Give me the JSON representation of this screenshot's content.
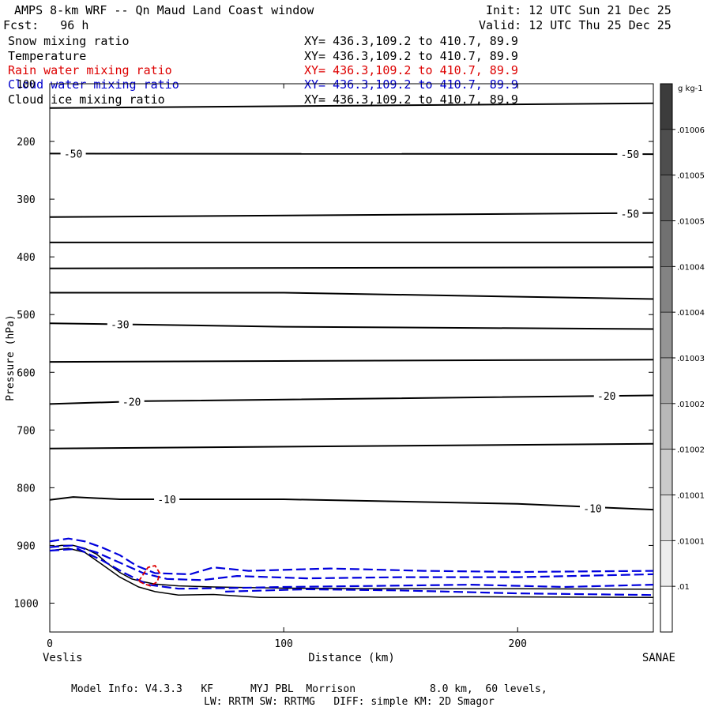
{
  "header": {
    "title": "AMPS 8-km WRF -- Qn Maud Land Coast window",
    "init": "Init: 12 UTC Sun 21 Dec 25",
    "fcst": "Fcst:   96 h",
    "valid": "Valid: 12 UTC Thu 25 Dec 25"
  },
  "legend": [
    {
      "name": "Snow mixing ratio",
      "xy": "XY= 436.3,109.2 to 410.7, 89.9",
      "color": "#000000"
    },
    {
      "name": "Temperature",
      "xy": "XY= 436.3,109.2 to 410.7, 89.9",
      "color": "#000000"
    },
    {
      "name": "Rain water mixing ratio",
      "xy": "XY= 436.3,109.2 to 410.7, 89.9",
      "color": "#dd0000"
    },
    {
      "name": "Cloud water mixing ratio",
      "xy": "XY= 436.3,109.2 to 410.7, 89.9",
      "color": "#0000cc"
    },
    {
      "name": "Cloud ice mixing ratio",
      "xy": "XY= 436.3,109.2 to 410.7, 89.9",
      "color": "#000000"
    }
  ],
  "footer": {
    "line1": "Model Info: V4.3.3   KF      MYJ PBL  Morrison            8.0 km,  60 levels,",
    "line2": "LW: RRTM SW: RRTMG   DIFF: simple KM: 2D Smagor"
  },
  "chart_data": {
    "type": "line",
    "title": "AMPS 8-km WRF -- Qn Maud Land Coast window",
    "xlabel": "Distance (km)",
    "ylabel": "Pressure (hPa)",
    "xlim": [
      0,
      258
    ],
    "ylim": [
      100,
      1050
    ],
    "x_ticks": [
      0,
      100,
      200
    ],
    "y_ticks": [
      100,
      200,
      300,
      400,
      500,
      600,
      700,
      800,
      900,
      1000
    ],
    "x_end_labels": {
      "left": "Veslis",
      "right": "SANAE"
    },
    "colorbar": {
      "unit": "g kg-1",
      "labels": [
        ".01006",
        ".01005",
        ".01005",
        ".01004",
        ".01004",
        ".01003",
        ".01002",
        ".01002",
        ".01001",
        ".01001",
        ".01"
      ]
    },
    "temperature_contours": [
      {
        "points": [
          [
            0,
            142
          ],
          [
            258,
            134
          ]
        ]
      },
      {
        "points": [
          [
            0,
            221
          ],
          [
            258,
            222
          ]
        ],
        "labels": [
          {
            "text": "-50",
            "x": 10,
            "y": 221
          },
          {
            "text": "-50",
            "x": 248,
            "y": 222
          }
        ]
      },
      {
        "points": [
          [
            0,
            331
          ],
          [
            258,
            324
          ]
        ],
        "labels": [
          {
            "text": "-50",
            "x": 248,
            "y": 325
          }
        ]
      },
      {
        "points": [
          [
            0,
            375
          ],
          [
            258,
            375
          ]
        ]
      },
      {
        "points": [
          [
            0,
            420
          ],
          [
            258,
            418
          ]
        ]
      },
      {
        "points": [
          [
            0,
            462
          ],
          [
            100,
            462
          ],
          [
            258,
            473
          ]
        ]
      },
      {
        "points": [
          [
            0,
            515
          ],
          [
            100,
            521
          ],
          [
            258,
            525
          ]
        ],
        "labels": [
          {
            "text": "-30",
            "x": 30,
            "y": 517
          }
        ]
      },
      {
        "points": [
          [
            0,
            582
          ],
          [
            258,
            578
          ]
        ]
      },
      {
        "points": [
          [
            0,
            655
          ],
          [
            40,
            650
          ],
          [
            258,
            640
          ]
        ],
        "labels": [
          {
            "text": "-20",
            "x": 35,
            "y": 651
          },
          {
            "text": "-20",
            "x": 238,
            "y": 641
          }
        ]
      },
      {
        "points": [
          [
            0,
            732
          ],
          [
            258,
            724
          ]
        ]
      },
      {
        "points": [
          [
            0,
            821
          ],
          [
            10,
            816
          ],
          [
            30,
            820
          ],
          [
            100,
            820
          ],
          [
            200,
            828
          ],
          [
            258,
            838
          ]
        ],
        "labels": [
          {
            "text": "-10",
            "x": 50,
            "y": 820
          },
          {
            "text": "-10",
            "x": 232,
            "y": 836
          }
        ]
      }
    ],
    "terrain_surface": [
      [
        0,
        903
      ],
      [
        5,
        900
      ],
      [
        10,
        900
      ],
      [
        15,
        905
      ],
      [
        20,
        915
      ],
      [
        25,
        932
      ],
      [
        30,
        947
      ],
      [
        35,
        958
      ],
      [
        40,
        963
      ],
      [
        45,
        967
      ],
      [
        55,
        970
      ],
      [
        70,
        972
      ],
      [
        100,
        974
      ],
      [
        140,
        975
      ],
      [
        200,
        975
      ],
      [
        258,
        976
      ]
    ],
    "terrain_lower": [
      [
        0,
        909
      ],
      [
        8,
        905
      ],
      [
        15,
        912
      ],
      [
        22,
        932
      ],
      [
        30,
        955
      ],
      [
        38,
        972
      ],
      [
        45,
        980
      ],
      [
        55,
        986
      ],
      [
        70,
        985
      ],
      [
        90,
        990
      ],
      [
        120,
        990
      ],
      [
        180,
        989
      ],
      [
        258,
        990
      ]
    ],
    "cloud_water_contours": [
      [
        [
          0,
          893
        ],
        [
          8,
          888
        ],
        [
          15,
          893
        ],
        [
          22,
          903
        ],
        [
          30,
          917
        ],
        [
          37,
          935
        ],
        [
          45,
          948
        ],
        [
          60,
          950
        ],
        [
          70,
          938
        ],
        [
          85,
          944
        ],
        [
          120,
          940
        ],
        [
          160,
          944
        ],
        [
          200,
          946
        ],
        [
          258,
          944
        ]
      ],
      [
        [
          0,
          903
        ],
        [
          10,
          900
        ],
        [
          20,
          912
        ],
        [
          30,
          930
        ],
        [
          40,
          948
        ],
        [
          50,
          958
        ],
        [
          65,
          960
        ],
        [
          80,
          953
        ],
        [
          110,
          957
        ],
        [
          150,
          955
        ],
        [
          200,
          955
        ],
        [
          258,
          950
        ]
      ],
      [
        [
          0,
          909
        ],
        [
          12,
          906
        ],
        [
          22,
          925
        ],
        [
          32,
          948
        ],
        [
          42,
          968
        ],
        [
          55,
          975
        ],
        [
          75,
          974
        ],
        [
          100,
          972
        ],
        [
          140,
          970
        ],
        [
          180,
          968
        ],
        [
          220,
          972
        ],
        [
          258,
          968
        ]
      ],
      [
        [
          75,
          980
        ],
        [
          110,
          976
        ],
        [
          150,
          978
        ],
        [
          200,
          983
        ],
        [
          258,
          986
        ]
      ]
    ],
    "rain_water_contours": [
      [
        [
          38,
          962
        ],
        [
          42,
          938
        ],
        [
          45,
          935
        ],
        [
          47,
          948
        ],
        [
          46,
          963
        ],
        [
          43,
          970
        ],
        [
          40,
          966
        ],
        [
          38,
          962
        ]
      ]
    ]
  }
}
